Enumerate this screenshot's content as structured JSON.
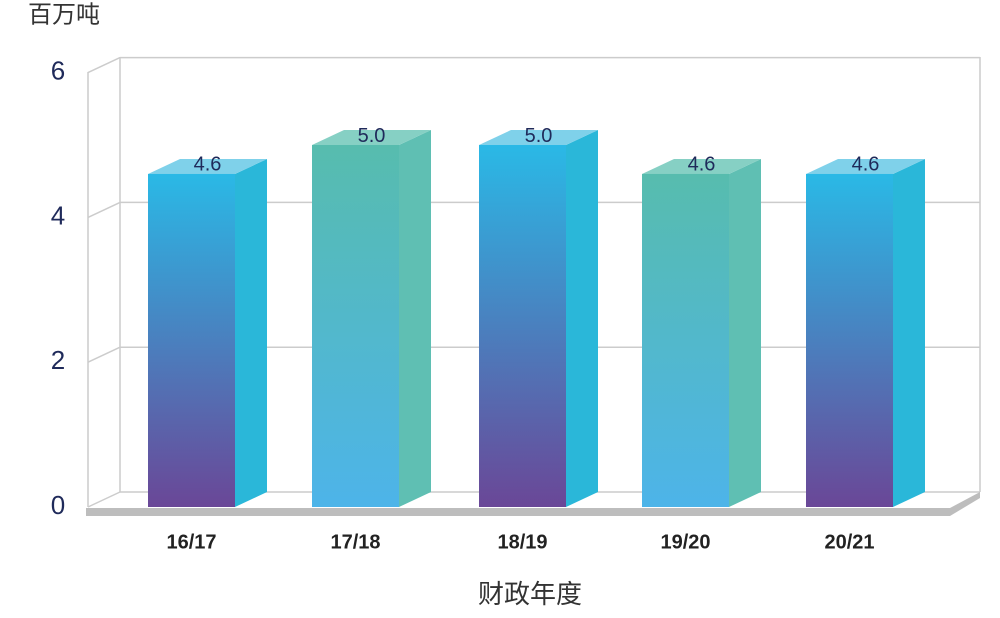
{
  "chart_data": {
    "type": "bar3d",
    "y_label": "百万吨",
    "x_label": "财政年度",
    "categories": [
      "16/17",
      "17/18",
      "18/19",
      "19/20",
      "20/21"
    ],
    "values": [
      4.6,
      5.0,
      5.0,
      4.6,
      4.6
    ],
    "value_labels": [
      "4.6",
      "5.0",
      "5.0",
      "4.6",
      "4.6"
    ],
    "colors": [
      [
        "#2ab9e6",
        "#6a4797"
      ],
      [
        "#57bcae",
        "#4db4e9"
      ],
      [
        "#2ab9e6",
        "#6a4797"
      ],
      [
        "#57bcae",
        "#4db4e9"
      ],
      [
        "#2ab9e6",
        "#6a4797"
      ]
    ],
    "side_colors": [
      "#2ab7d9",
      "#5fbfb3",
      "#2ab7d9",
      "#5fbfb3",
      "#2ab7d9"
    ],
    "top_colors": [
      "#7fd1ea",
      "#86d0c4",
      "#7fd1ea",
      "#86d0c4",
      "#7fd1ea"
    ],
    "ylim": [
      0,
      6
    ],
    "yticks": [
      0,
      2,
      4,
      6
    ],
    "grid": true
  }
}
